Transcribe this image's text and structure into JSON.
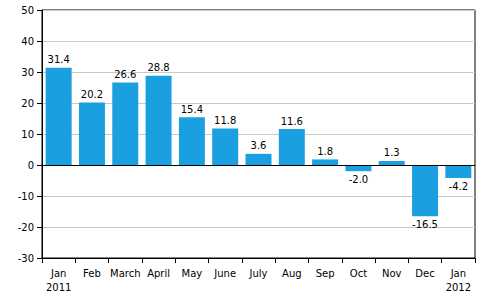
{
  "chart_data": {
    "type": "bar",
    "categories": [
      "Jan",
      "Feb",
      "March",
      "April",
      "May",
      "June",
      "July",
      "Aug",
      "Sep",
      "Oct",
      "Nov",
      "Dec",
      "Jan"
    ],
    "years": [
      "2011",
      null,
      null,
      null,
      null,
      null,
      null,
      null,
      null,
      null,
      null,
      null,
      "2012"
    ],
    "values": [
      31.4,
      20.2,
      26.6,
      28.8,
      15.4,
      11.8,
      3.6,
      11.6,
      1.8,
      -2.0,
      1.3,
      -16.5,
      -4.2
    ],
    "value_labels": [
      "31.4",
      "20.2",
      "26.6",
      "28.8",
      "15.4",
      "11.8",
      "3.6",
      "11.6",
      "1.8",
      "-2.0",
      "1.3",
      "-16.5",
      "-4.2"
    ],
    "color": "#1a9fe0",
    "ylim": [
      -30,
      50
    ],
    "yticks": [
      -30,
      -20,
      -10,
      0,
      10,
      20,
      30,
      40,
      50
    ],
    "grid": true,
    "data_labels": true
  }
}
